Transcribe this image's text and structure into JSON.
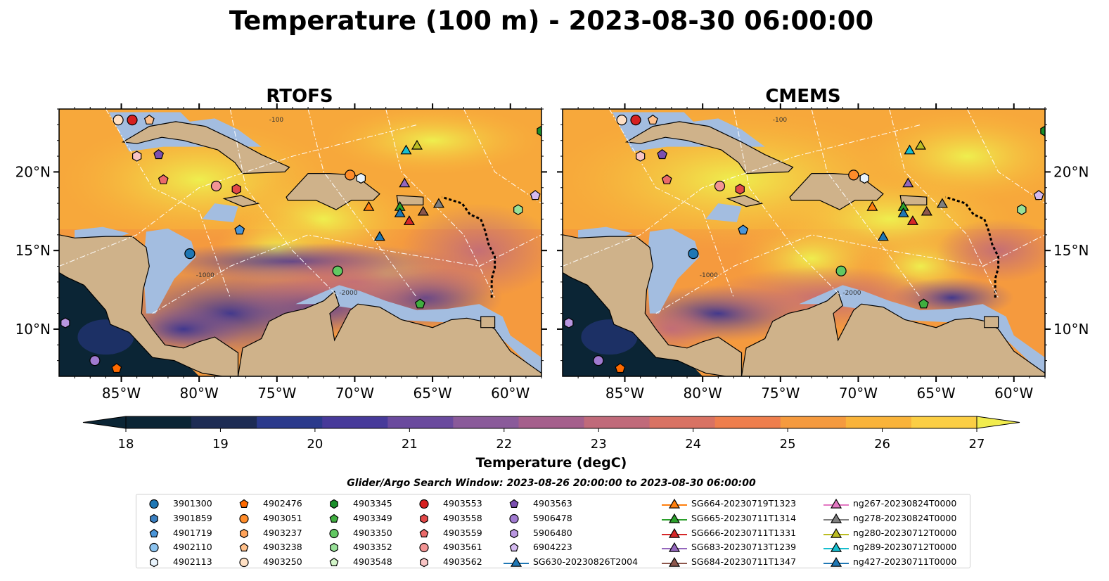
{
  "chart_data": {
    "type": "map",
    "title": "Temperature (100 m) - 2023-08-30 06:00:00",
    "panels": [
      {
        "name": "RTOFS"
      },
      {
        "name": "CMEMS"
      }
    ],
    "map_extent": {
      "lon": [
        -89,
        -58
      ],
      "lat": [
        7,
        24
      ]
    },
    "lon_ticks": [
      -85,
      -80,
      -75,
      -70,
      -65,
      -60
    ],
    "lon_tick_labels": [
      "85°W",
      "80°W",
      "75°W",
      "70°W",
      "65°W",
      "60°W"
    ],
    "lat_ticks": [
      10,
      15,
      20
    ],
    "lat_tick_labels": [
      "10°N",
      "15°N",
      "20°N"
    ],
    "contour_labels": [
      "-100",
      "-1000",
      "-2000"
    ],
    "colorbar": {
      "label": "Temperature (degC)",
      "range": [
        18,
        27
      ],
      "ticks": [
        18,
        19,
        20,
        21,
        22,
        23,
        24,
        25,
        26,
        27
      ],
      "tick_labels": [
        "18",
        "19",
        "20",
        "21",
        "22",
        "23",
        "24",
        "25",
        "26",
        "27"
      ],
      "extend": "both",
      "colors": [
        "#0b2535",
        "#1d2c54",
        "#2b3a8c",
        "#473a9a",
        "#6a4a9e",
        "#8a5a9a",
        "#a55f8c",
        "#c06a7a",
        "#d97263",
        "#ee7e4d",
        "#f59a3e",
        "#f9b33a",
        "#fbce44",
        "#f1ec4e"
      ]
    },
    "subtitle": "Glider/Argo Search Window: 2023-08-26 20:00:00 to 2023-08-30 06:00:00",
    "colors": {
      "land": "#cfb28a",
      "shelf": "#a3bde0",
      "deep": "#0b2535",
      "warm": "#e8f255"
    },
    "legend": {
      "columns": [
        [
          {
            "label": "3901300",
            "marker": "circle",
            "color": "#1f77b4"
          },
          {
            "label": "3901859",
            "marker": "hexagon",
            "color": "#3a7fc0"
          },
          {
            "label": "4901719",
            "marker": "pentagon",
            "color": "#4a95d8"
          },
          {
            "label": "4902110",
            "marker": "circle",
            "color": "#8cc3ef"
          },
          {
            "label": "4902113",
            "marker": "hexagon",
            "color": "#e8f3fc"
          }
        ],
        [
          {
            "label": "4902476",
            "marker": "pentagon",
            "color": "#ff6a00"
          },
          {
            "label": "4903051",
            "marker": "circle",
            "color": "#ff8c2a"
          },
          {
            "label": "4903237",
            "marker": "hexagon",
            "color": "#ffa35a"
          },
          {
            "label": "4903238",
            "marker": "pentagon",
            "color": "#ffc08a"
          },
          {
            "label": "4903250",
            "marker": "circle",
            "color": "#ffe0c4"
          }
        ],
        [
          {
            "label": "4903345",
            "marker": "hexagon",
            "color": "#1a8f2a"
          },
          {
            "label": "4903349",
            "marker": "pentagon",
            "color": "#3fae3f"
          },
          {
            "label": "4903350",
            "marker": "circle",
            "color": "#62c862"
          },
          {
            "label": "4903352",
            "marker": "hexagon",
            "color": "#98e098"
          },
          {
            "label": "4903548",
            "marker": "pentagon",
            "color": "#d2f5c8"
          }
        ],
        [
          {
            "label": "4903553",
            "marker": "circle",
            "color": "#d62020"
          },
          {
            "label": "4903558",
            "marker": "hexagon",
            "color": "#e24848"
          },
          {
            "label": "4903559",
            "marker": "pentagon",
            "color": "#ea6a6a"
          },
          {
            "label": "4903561",
            "marker": "circle",
            "color": "#f29494"
          },
          {
            "label": "4903562",
            "marker": "hexagon",
            "color": "#f8c4c4"
          }
        ],
        [
          {
            "label": "4903563",
            "marker": "pentagon",
            "color": "#7b4fb0"
          },
          {
            "label": "5906478",
            "marker": "circle",
            "color": "#a07ad0"
          },
          {
            "label": "5906480",
            "marker": "hexagon",
            "color": "#b996e0"
          },
          {
            "label": "6904223",
            "marker": "pentagon",
            "color": "#d4baf0"
          },
          {
            "label": "SG630-20230826T2004",
            "marker": "triangle-line",
            "color": "#1f77b4"
          }
        ],
        [
          {
            "label": "SG664-20230719T1323",
            "marker": "triangle-line",
            "color": "#ff7f0e"
          },
          {
            "label": "SG665-20230711T1314",
            "marker": "triangle-line",
            "color": "#2ca02c"
          },
          {
            "label": "SG666-20230711T1331",
            "marker": "triangle-line",
            "color": "#d62728"
          },
          {
            "label": "SG683-20230713T1239",
            "marker": "triangle-line",
            "color": "#9467bd"
          },
          {
            "label": "SG684-20230711T1347",
            "marker": "triangle-line",
            "color": "#8c564b"
          }
        ],
        [
          {
            "label": "ng267-20230824T0000",
            "marker": "triangle-line",
            "color": "#e377c2"
          },
          {
            "label": "ng278-20230824T0000",
            "marker": "triangle-line",
            "color": "#7f7f7f"
          },
          {
            "label": "ng280-20230712T0000",
            "marker": "triangle-line",
            "color": "#bcbd22"
          },
          {
            "label": "ng289-20230712T0000",
            "marker": "triangle-line",
            "color": "#17becf"
          },
          {
            "label": "ng427-20230711T0000",
            "marker": "triangle-line",
            "color": "#1f77b4"
          }
        ]
      ]
    },
    "markers_on_map": [
      {
        "label": "3901300",
        "lon": -80.6,
        "lat": 14.8,
        "marker": "circle",
        "color": "#1f77b4"
      },
      {
        "label": "4902476",
        "lon": -85.3,
        "lat": 7.5,
        "marker": "pentagon",
        "color": "#ff6a00"
      },
      {
        "label": "4903051",
        "lon": -70.3,
        "lat": 19.8,
        "marker": "circle",
        "color": "#ff8c2a"
      },
      {
        "label": "4902113",
        "lon": -69.6,
        "lat": 19.6,
        "marker": "hexagon",
        "color": "#e8f3fc"
      },
      {
        "label": "4901719",
        "lon": -77.4,
        "lat": 16.3,
        "marker": "pentagon",
        "color": "#4a95d8"
      },
      {
        "label": "4903250",
        "lon": -85.2,
        "lat": 23.3,
        "marker": "circle",
        "color": "#ffe0c4"
      },
      {
        "label": "4903553",
        "lon": -84.3,
        "lat": 23.3,
        "marker": "circle",
        "color": "#d62020"
      },
      {
        "label": "4903238",
        "lon": -83.2,
        "lat": 23.3,
        "marker": "pentagon",
        "color": "#ffc08a"
      },
      {
        "label": "4903562",
        "lon": -84.0,
        "lat": 21.0,
        "marker": "hexagon",
        "color": "#f8c4c4"
      },
      {
        "label": "4903563",
        "lon": -82.6,
        "lat": 21.1,
        "marker": "pentagon",
        "color": "#7b4fb0"
      },
      {
        "label": "4903559",
        "lon": -82.3,
        "lat": 19.5,
        "marker": "pentagon",
        "color": "#ea6a6a"
      },
      {
        "label": "4903561",
        "lon": -78.9,
        "lat": 19.1,
        "marker": "circle",
        "color": "#f29494"
      },
      {
        "label": "4903558",
        "lon": -77.6,
        "lat": 18.9,
        "marker": "hexagon",
        "color": "#e24848"
      },
      {
        "label": "4903350",
        "lon": -71.1,
        "lat": 13.7,
        "marker": "circle",
        "color": "#62c862"
      },
      {
        "label": "4903349",
        "lon": -65.8,
        "lat": 11.6,
        "marker": "pentagon",
        "color": "#3fae3f"
      },
      {
        "label": "4903352",
        "lon": -59.5,
        "lat": 17.6,
        "marker": "hexagon",
        "color": "#98e098"
      },
      {
        "label": "4903345",
        "lon": -58.0,
        "lat": 22.6,
        "marker": "hexagon",
        "color": "#1a8f2a"
      },
      {
        "label": "6904223",
        "lon": -58.4,
        "lat": 18.5,
        "marker": "pentagon",
        "color": "#d4baf0"
      },
      {
        "label": "5906478",
        "lon": -86.7,
        "lat": 8.0,
        "marker": "circle",
        "color": "#a07ad0"
      },
      {
        "label": "5906480",
        "lon": -88.6,
        "lat": 10.4,
        "marker": "hexagon",
        "color": "#b996e0"
      },
      {
        "label": "SG630-20230826T2004",
        "lon": -68.4,
        "lat": 15.9,
        "marker": "triangle",
        "color": "#1f77b4"
      },
      {
        "label": "SG664-20230719T1323",
        "lon": -69.1,
        "lat": 17.8,
        "marker": "triangle",
        "color": "#ff7f0e"
      },
      {
        "label": "SG665-20230711T1314",
        "lon": -67.1,
        "lat": 17.8,
        "marker": "triangle",
        "color": "#2ca02c"
      },
      {
        "label": "SG666-20230711T1331",
        "lon": -66.5,
        "lat": 16.9,
        "marker": "triangle",
        "color": "#d62728"
      },
      {
        "label": "SG683-20230713T1239",
        "lon": -66.8,
        "lat": 19.3,
        "marker": "triangle",
        "color": "#9467bd"
      },
      {
        "label": "SG684-20230711T1347",
        "lon": -65.6,
        "lat": 17.5,
        "marker": "triangle",
        "color": "#8c564b"
      },
      {
        "label": "ng278-20230824T0000",
        "lon": -64.6,
        "lat": 18.0,
        "marker": "triangle",
        "color": "#7f7f7f"
      },
      {
        "label": "ng280-20230712T0000",
        "lon": -66.0,
        "lat": 21.7,
        "marker": "triangle",
        "color": "#bcbd22"
      },
      {
        "label": "ng289-20230712T0000",
        "lon": -66.7,
        "lat": 21.4,
        "marker": "triangle",
        "color": "#17becf"
      },
      {
        "label": "ng427-20230711T0000",
        "lon": -67.1,
        "lat": 17.4,
        "marker": "triangle",
        "color": "#1f77b4"
      }
    ]
  }
}
